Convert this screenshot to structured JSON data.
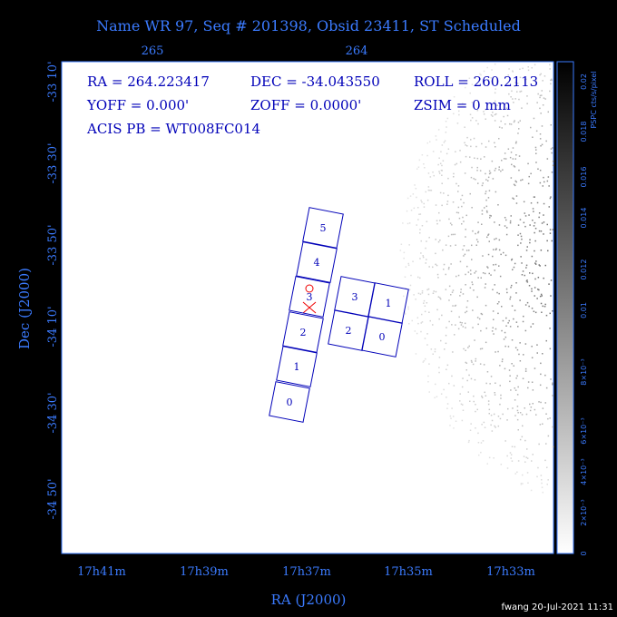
{
  "header": {
    "title": "Name WR 97, Seq # 201398, Obsid 23411, ST Scheduled"
  },
  "top_axis": {
    "ticks": [
      "265",
      "264"
    ]
  },
  "left_axis": {
    "label": "Dec (J2000)",
    "ticks": [
      "-33 10'",
      "-33 30'",
      "-33 50'",
      "-34 10'",
      "-34 30'",
      "-34 50'"
    ]
  },
  "bottom_axis": {
    "label": "RA (J2000)",
    "ticks": [
      "17h41m",
      "17h39m",
      "17h37m",
      "17h35m",
      "17h33m"
    ]
  },
  "info": {
    "lines": [
      [
        "RA = 264.223417",
        "DEC = -34.043550",
        "ROLL = 260.2113"
      ],
      [
        "YOFF =    0.000'",
        "ZOFF =   0.0000'",
        "ZSIM = 0 mm"
      ],
      [
        "ACIS PB = WT008FC014"
      ]
    ]
  },
  "chips": {
    "s_array": [
      "0",
      "1",
      "2",
      "3",
      "4",
      "5"
    ],
    "i_array": [
      "3",
      "1",
      "2",
      "0"
    ]
  },
  "colorbar": {
    "label": "PSPC cts/s/pixel",
    "ticks": [
      "0",
      "2×10⁻³",
      "4×10⁻³",
      "6×10⁻³",
      "8×10⁻³",
      "0.01",
      "0.012",
      "0.014",
      "0.016",
      "0.018",
      "0.02"
    ]
  },
  "footer": {
    "stamp": "fwang 20-Jul-2021 11:31"
  }
}
